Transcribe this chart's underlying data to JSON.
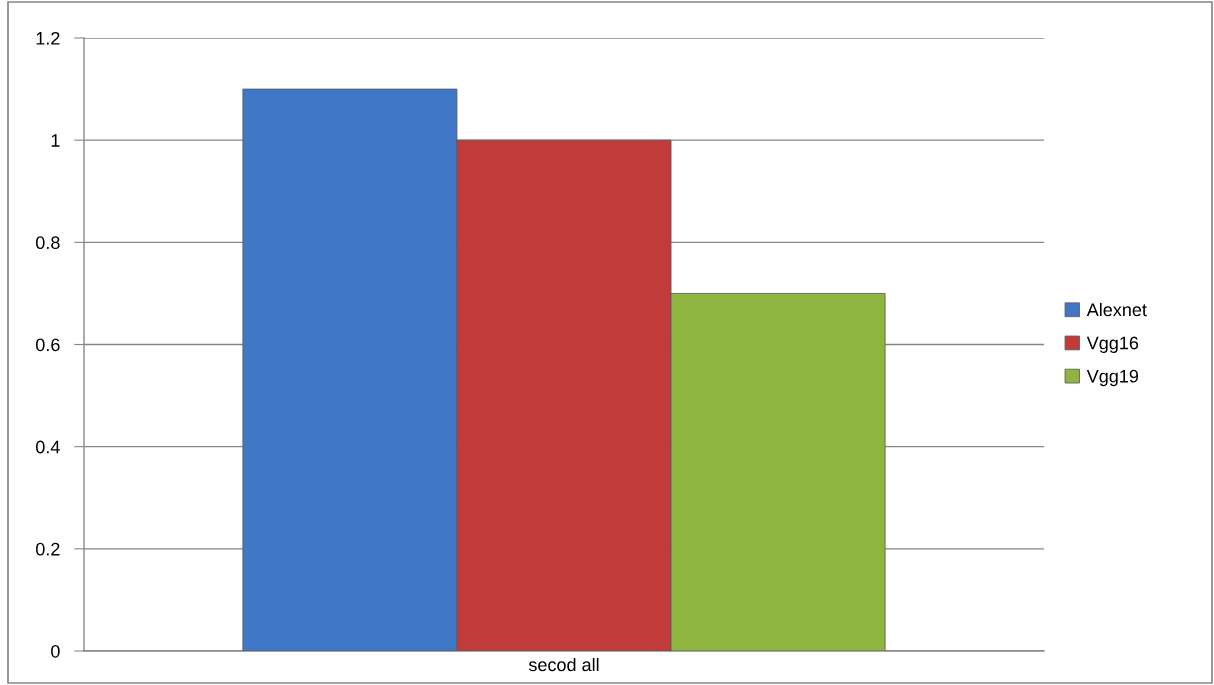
{
  "chart_data": {
    "type": "bar",
    "categories": [
      "secod all"
    ],
    "series": [
      {
        "name": "Alexnet",
        "color": "#4177c7",
        "values": [
          1.1
        ]
      },
      {
        "name": "Vgg16",
        "color": "#c23b3b",
        "values": [
          1.0
        ]
      },
      {
        "name": "Vgg19",
        "color": "#8fb540",
        "values": [
          0.7
        ]
      }
    ],
    "ylim": [
      0,
      1.2
    ],
    "yticks": [
      0,
      0.2,
      0.4,
      0.6,
      0.8,
      1,
      1.2
    ],
    "grid": "y",
    "legend": "right"
  }
}
